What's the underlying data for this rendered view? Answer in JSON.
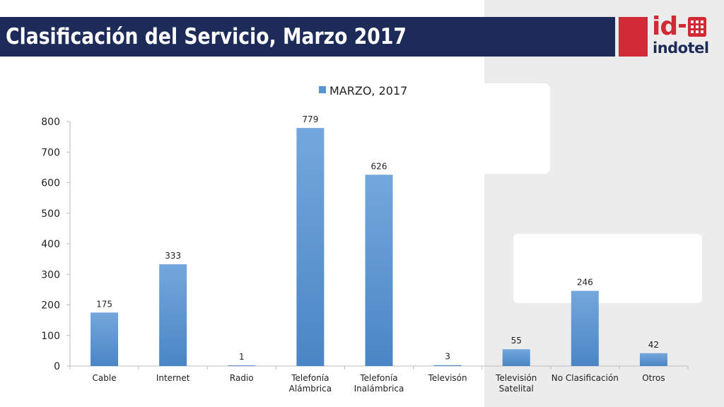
{
  "header": {
    "title": "Clasificación del Servicio, Marzo 2017"
  },
  "logo": {
    "id_text": "id",
    "word": "indotel"
  },
  "colors": {
    "title_bar": "#1c2b57",
    "brand_red": "#cf2a35",
    "bar_top": "#74a7dc",
    "bar_bottom": "#4a86c5"
  },
  "chart_data": {
    "type": "bar",
    "categories": [
      [
        "Cable"
      ],
      [
        "Internet"
      ],
      [
        "Radio"
      ],
      [
        "Telefonía",
        "Alámbrica"
      ],
      [
        "Telefonía",
        "Inalámbrica"
      ],
      [
        "Televisón"
      ],
      [
        "Televisión",
        "Satelital"
      ],
      [
        "No Clasificación"
      ],
      [
        "Otros"
      ]
    ],
    "series": [
      {
        "name": "MARZO, 2017",
        "values": [
          175,
          333,
          1,
          779,
          626,
          3,
          55,
          246,
          42
        ]
      }
    ],
    "ylim": [
      0,
      800
    ],
    "yticks": [
      0,
      100,
      200,
      300,
      400,
      500,
      600,
      700,
      800
    ],
    "legend_position": "top",
    "grid": false,
    "data_labels": true
  }
}
